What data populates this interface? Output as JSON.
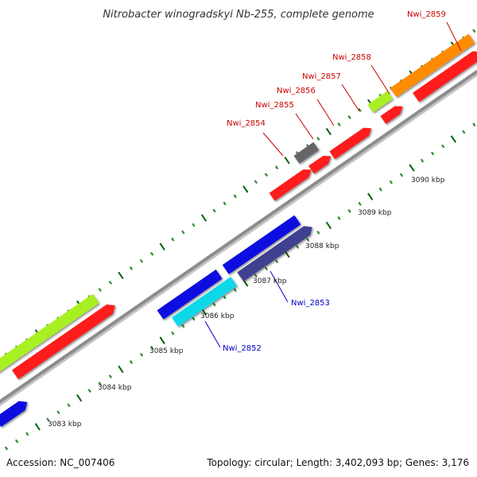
{
  "title": "Nitrobacter winogradskyi Nb-255, complete genome",
  "accession_text": "Accession: NC_007406",
  "summary_text": "Topology: circular; Length: 3,402,093 bp; Genes: 3,176",
  "colors": {
    "backbone": "#8c8c8c",
    "tick_dark": "#006400",
    "tick_light": "#2e8b2e",
    "label_red": "#cc0000",
    "label_blue": "#0000cc"
  },
  "scale_labels": [
    "3083 kbp",
    "3084 kbp",
    "3085 kbp",
    "3086 kbp",
    "3087 kbp",
    "3088 kbp",
    "3089 kbp",
    "3090 kbp"
  ],
  "gene_labels": [
    {
      "name": "Nwi_2852",
      "color": "#0000cc"
    },
    {
      "name": "Nwi_2853",
      "color": "#0000cc"
    },
    {
      "name": "Nwi_2854",
      "color": "#cc0000"
    },
    {
      "name": "Nwi_2855",
      "color": "#cc0000"
    },
    {
      "name": "Nwi_2856",
      "color": "#cc0000"
    },
    {
      "name": "Nwi_2857",
      "color": "#cc0000"
    },
    {
      "name": "Nwi_2858",
      "color": "#cc0000"
    },
    {
      "name": "Nwi_2859",
      "color": "#cc0000"
    }
  ],
  "feature_colors": {
    "red": "#ff1a1a",
    "blue": "#1010e0",
    "navy": "#404090",
    "cyan": "#10d8e8",
    "lime": "#a8f020",
    "orange": "#ff8c00",
    "gray": "#666666"
  }
}
